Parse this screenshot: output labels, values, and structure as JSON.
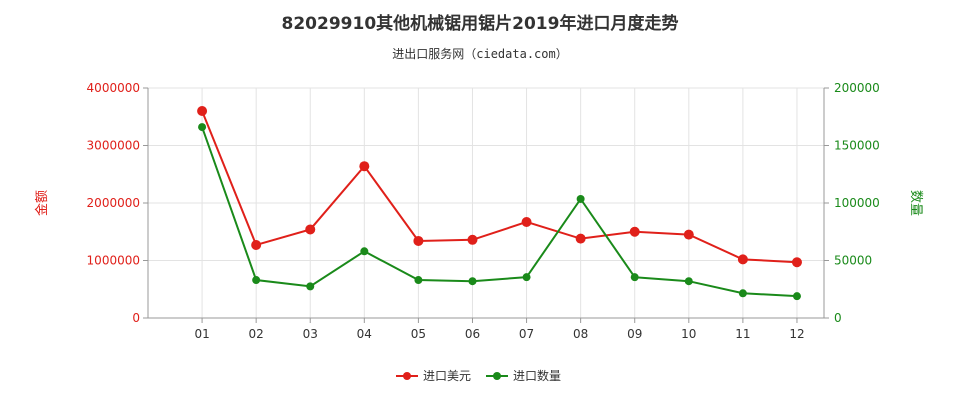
{
  "chart_data": {
    "type": "line",
    "title": "82029910其他机械锯用锯片2019年进口月度走势",
    "subtitle": "进出口服务网（ciedata.com）",
    "categories": [
      "01",
      "02",
      "03",
      "04",
      "05",
      "06",
      "07",
      "08",
      "09",
      "10",
      "11",
      "12"
    ],
    "y_left": {
      "label": "金额",
      "ylim": [
        0,
        4000000
      ],
      "ticks": [
        "0",
        "1000000",
        "2000000",
        "3000000",
        "4000000"
      ],
      "color": "#e0201a"
    },
    "y_right": {
      "label": "数量",
      "ylim": [
        0,
        200000
      ],
      "ticks": [
        "0",
        "50000",
        "100000",
        "150000",
        "200000"
      ],
      "color": "#1a8a1a"
    },
    "series": [
      {
        "name": "进口美元",
        "axis": "left",
        "color": "#e0201a",
        "values": [
          3600000,
          1270000,
          1540000,
          2640000,
          1340000,
          1360000,
          1670000,
          1380000,
          1500000,
          1450000,
          1020000,
          970000
        ]
      },
      {
        "name": "进口数量",
        "axis": "right",
        "color": "#1a8a1a",
        "values": [
          166000,
          33000,
          27500,
          58000,
          33000,
          32000,
          35500,
          103500,
          35500,
          32000,
          21500,
          19000
        ]
      }
    ],
    "grid": true,
    "legend_position": "bottom"
  }
}
